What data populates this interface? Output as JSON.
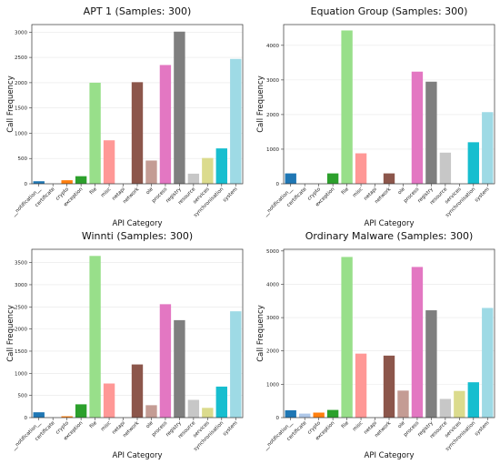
{
  "chart_data": [
    {
      "type": "bar",
      "title": "APT 1 (Samples: 300)",
      "xlabel": "API Category",
      "ylabel": "Call Frequency",
      "ylim": [
        0,
        3150
      ],
      "yticks": [
        0,
        500,
        1000,
        1500,
        2000,
        2500,
        3000
      ],
      "grid": true,
      "categories": [
        "__notification__",
        "certificate",
        "crypto",
        "exception",
        "file",
        "misc",
        "netapi",
        "network",
        "ole",
        "process",
        "registry",
        "resource",
        "services",
        "synchronisation",
        "system"
      ],
      "values": [
        50,
        0,
        70,
        150,
        2000,
        860,
        0,
        2010,
        460,
        2350,
        3010,
        200,
        510,
        700,
        2470
      ]
    },
    {
      "type": "bar",
      "title": "Equation Group (Samples: 300)",
      "xlabel": "API Category",
      "ylabel": "Call Frequency",
      "ylim": [
        0,
        4600
      ],
      "yticks": [
        0,
        1000,
        2000,
        3000,
        4000
      ],
      "grid": true,
      "categories": [
        "__notification__",
        "certificate",
        "crypto",
        "exception",
        "file",
        "misc",
        "netapi",
        "network",
        "ole",
        "process",
        "registry",
        "resource",
        "services",
        "synchronisation",
        "system"
      ],
      "values": [
        300,
        0,
        0,
        300,
        4430,
        880,
        0,
        300,
        0,
        3240,
        2950,
        900,
        0,
        1200,
        2070
      ]
    },
    {
      "type": "bar",
      "title": "Winnti (Samples: 300)",
      "xlabel": "API Category",
      "ylabel": "Call Frequency",
      "ylim": [
        0,
        3800
      ],
      "yticks": [
        0,
        500,
        1000,
        1500,
        2000,
        2500,
        3000,
        3500
      ],
      "grid": true,
      "categories": [
        "__notification__",
        "certificate",
        "crypto",
        "exception",
        "file",
        "misc",
        "netapi",
        "network",
        "ole",
        "process",
        "registry",
        "resource",
        "services",
        "synchronisation",
        "system"
      ],
      "values": [
        120,
        0,
        30,
        300,
        3650,
        770,
        0,
        1200,
        280,
        2560,
        2200,
        400,
        220,
        700,
        2400
      ]
    },
    {
      "type": "bar",
      "title": "Ordinary Malware (Samples: 300)",
      "xlabel": "API Category",
      "ylabel": "Call Frequency",
      "ylim": [
        0,
        5050
      ],
      "yticks": [
        0,
        1000,
        2000,
        3000,
        4000,
        5000
      ],
      "grid": true,
      "categories": [
        "__notification__",
        "certificate",
        "crypto",
        "exception",
        "file",
        "misc",
        "netapi",
        "network",
        "ole",
        "process",
        "registry",
        "resource",
        "services",
        "synchronisation",
        "system"
      ],
      "values": [
        220,
        120,
        150,
        230,
        4820,
        1920,
        0,
        1860,
        810,
        4520,
        3220,
        560,
        800,
        1060,
        3290
      ]
    }
  ],
  "colors": [
    "#1f77b4",
    "#aec7e8",
    "#ff7f0e",
    "#2ca02c",
    "#98df8a",
    "#ff9896",
    "#9467bd",
    "#8c564b",
    "#c49c94",
    "#e377c2",
    "#7f7f7f",
    "#c7c7c7",
    "#dbdb8d",
    "#17becf",
    "#9edae5"
  ],
  "grid_color": "#e8e8e8"
}
